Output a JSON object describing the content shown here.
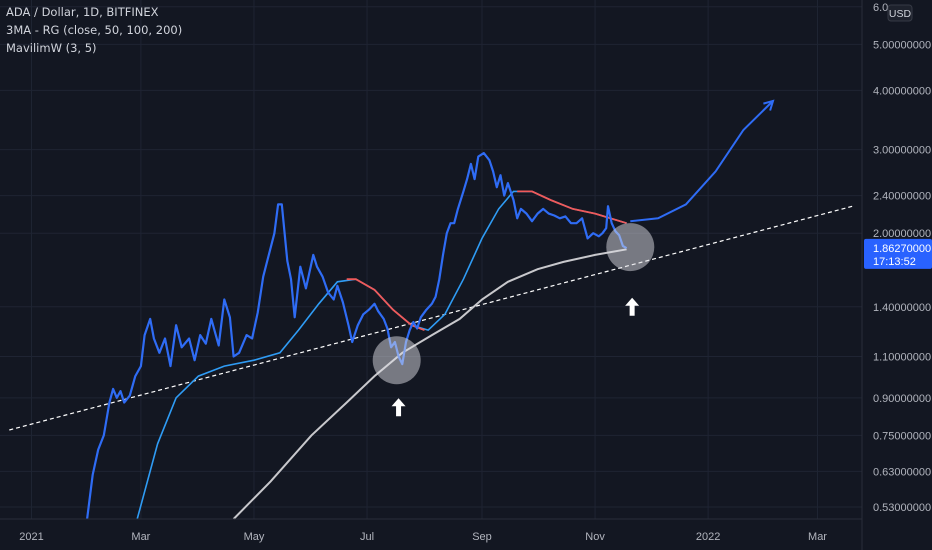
{
  "header": {
    "symbol": "ADA / Dollar, 1D, BITFINEX",
    "indicator_1": "3MA - RG (close, 50, 100, 200)",
    "indicator_2": "MavilimW (3, 5)",
    "currency": "USD"
  },
  "colors": {
    "background": "#131722",
    "grid": "#1f2433",
    "price": "#2f6cf5",
    "ma50": "#2f9cf5",
    "ma100_down": "#f05a5a",
    "ma200": "#c8c8cc",
    "trendline": "#ffffff",
    "price_label_bg": "#2962ff",
    "axis_text": "#b2b5be"
  },
  "price_label": {
    "value": "1.86270000",
    "countdown": "17:13:52"
  },
  "chart_data": {
    "type": "line",
    "title": "ADA / Dollar, 1D, BITFINEX",
    "y_scale": "log",
    "ylim": [
      0.5,
      6.2
    ],
    "xlim": [
      "2020-12-15",
      "2022-03-25"
    ],
    "x_ticks": [
      {
        "date": "2021-01-01",
        "label": "2021"
      },
      {
        "date": "2021-03-01",
        "label": "Mar"
      },
      {
        "date": "2021-05-01",
        "label": "May"
      },
      {
        "date": "2021-07-01",
        "label": "Jul"
      },
      {
        "date": "2021-09-01",
        "label": "Sep"
      },
      {
        "date": "2021-11-01",
        "label": "Nov"
      },
      {
        "date": "2022-01-01",
        "label": "2022"
      },
      {
        "date": "2022-03-01",
        "label": "Mar"
      }
    ],
    "y_ticks": [
      {
        "value": 6.0,
        "label": "6.0"
      },
      {
        "value": 5.0,
        "label": "5.00000000"
      },
      {
        "value": 4.0,
        "label": "4.00000000"
      },
      {
        "value": 3.0,
        "label": "3.00000000"
      },
      {
        "value": 2.4,
        "label": "2.40000000"
      },
      {
        "value": 2.0,
        "label": "2.00000000"
      },
      {
        "value": 1.4,
        "label": "1.40000000"
      },
      {
        "value": 1.1,
        "label": "1.10000000"
      },
      {
        "value": 0.9,
        "label": "0.90000000"
      },
      {
        "value": 0.75,
        "label": "0.75000000"
      },
      {
        "value": 0.63,
        "label": "0.63000000"
      },
      {
        "value": 0.53,
        "label": "0.53000000"
      }
    ],
    "series": [
      {
        "key": "price",
        "values": [
          [
            "2021-01-31",
            0.5
          ],
          [
            "2021-02-03",
            0.62
          ],
          [
            "2021-02-06",
            0.7
          ],
          [
            "2021-02-09",
            0.75
          ],
          [
            "2021-02-12",
            0.88
          ],
          [
            "2021-02-14",
            0.94
          ],
          [
            "2021-02-16",
            0.9
          ],
          [
            "2021-02-18",
            0.93
          ],
          [
            "2021-02-20",
            0.88
          ],
          [
            "2021-02-23",
            0.91
          ],
          [
            "2021-02-26",
            1.0
          ],
          [
            "2021-03-01",
            1.05
          ],
          [
            "2021-03-03",
            1.22
          ],
          [
            "2021-03-06",
            1.32
          ],
          [
            "2021-03-08",
            1.2
          ],
          [
            "2021-03-11",
            1.12
          ],
          [
            "2021-03-14",
            1.2
          ],
          [
            "2021-03-17",
            1.05
          ],
          [
            "2021-03-20",
            1.28
          ],
          [
            "2021-03-23",
            1.15
          ],
          [
            "2021-03-27",
            1.2
          ],
          [
            "2021-03-30",
            1.08
          ],
          [
            "2021-04-02",
            1.22
          ],
          [
            "2021-04-05",
            1.17
          ],
          [
            "2021-04-08",
            1.32
          ],
          [
            "2021-04-12",
            1.16
          ],
          [
            "2021-04-15",
            1.45
          ],
          [
            "2021-04-18",
            1.33
          ],
          [
            "2021-04-20",
            1.1
          ],
          [
            "2021-04-23",
            1.12
          ],
          [
            "2021-04-27",
            1.22
          ],
          [
            "2021-04-30",
            1.2
          ],
          [
            "2021-05-03",
            1.36
          ],
          [
            "2021-05-06",
            1.62
          ],
          [
            "2021-05-09",
            1.8
          ],
          [
            "2021-05-12",
            2.0
          ],
          [
            "2021-05-14",
            2.3
          ],
          [
            "2021-05-16",
            2.3
          ],
          [
            "2021-05-19",
            1.75
          ],
          [
            "2021-05-21",
            1.6
          ],
          [
            "2021-05-23",
            1.33
          ],
          [
            "2021-05-26",
            1.7
          ],
          [
            "2021-05-29",
            1.53
          ],
          [
            "2021-06-02",
            1.8
          ],
          [
            "2021-06-04",
            1.7
          ],
          [
            "2021-06-07",
            1.62
          ],
          [
            "2021-06-10",
            1.5
          ],
          [
            "2021-06-13",
            1.45
          ],
          [
            "2021-06-15",
            1.55
          ],
          [
            "2021-06-18",
            1.43
          ],
          [
            "2021-06-21",
            1.28
          ],
          [
            "2021-06-23",
            1.18
          ],
          [
            "2021-06-26",
            1.28
          ],
          [
            "2021-06-29",
            1.35
          ],
          [
            "2021-07-02",
            1.38
          ],
          [
            "2021-07-05",
            1.42
          ],
          [
            "2021-07-07",
            1.37
          ],
          [
            "2021-07-10",
            1.32
          ],
          [
            "2021-07-12",
            1.26
          ],
          [
            "2021-07-14",
            1.15
          ],
          [
            "2021-07-16",
            1.18
          ],
          [
            "2021-07-18",
            1.1
          ],
          [
            "2021-07-20",
            1.06
          ],
          [
            "2021-07-22",
            1.18
          ],
          [
            "2021-07-24",
            1.25
          ],
          [
            "2021-07-26",
            1.3
          ],
          [
            "2021-07-28",
            1.26
          ],
          [
            "2021-07-30",
            1.33
          ],
          [
            "2021-08-02",
            1.38
          ],
          [
            "2021-08-05",
            1.42
          ],
          [
            "2021-08-07",
            1.47
          ],
          [
            "2021-08-09",
            1.6
          ],
          [
            "2021-08-11",
            1.8
          ],
          [
            "2021-08-13",
            2.0
          ],
          [
            "2021-08-15",
            2.1
          ],
          [
            "2021-08-17",
            2.1
          ],
          [
            "2021-08-19",
            2.25
          ],
          [
            "2021-08-22",
            2.45
          ],
          [
            "2021-08-24",
            2.6
          ],
          [
            "2021-08-26",
            2.8
          ],
          [
            "2021-08-28",
            2.6
          ],
          [
            "2021-08-30",
            2.9
          ],
          [
            "2021-09-02",
            2.95
          ],
          [
            "2021-09-05",
            2.85
          ],
          [
            "2021-09-07",
            2.7
          ],
          [
            "2021-09-09",
            2.5
          ],
          [
            "2021-09-11",
            2.65
          ],
          [
            "2021-09-13",
            2.4
          ],
          [
            "2021-09-15",
            2.55
          ],
          [
            "2021-09-18",
            2.35
          ],
          [
            "2021-09-20",
            2.15
          ],
          [
            "2021-09-22",
            2.25
          ],
          [
            "2021-09-25",
            2.2
          ],
          [
            "2021-09-28",
            2.12
          ],
          [
            "2021-10-01",
            2.2
          ],
          [
            "2021-10-04",
            2.25
          ],
          [
            "2021-10-07",
            2.2
          ],
          [
            "2021-10-10",
            2.18
          ],
          [
            "2021-10-13",
            2.15
          ],
          [
            "2021-10-16",
            2.17
          ],
          [
            "2021-10-19",
            2.1
          ],
          [
            "2021-10-22",
            2.1
          ],
          [
            "2021-10-25",
            2.15
          ],
          [
            "2021-10-28",
            1.95
          ],
          [
            "2021-10-31",
            2.0
          ],
          [
            "2021-11-03",
            1.97
          ],
          [
            "2021-11-05",
            2.0
          ],
          [
            "2021-11-07",
            2.05
          ],
          [
            "2021-11-08",
            2.28
          ],
          [
            "2021-11-10",
            2.1
          ],
          [
            "2021-11-12",
            2.02
          ],
          [
            "2021-11-14",
            1.98
          ],
          [
            "2021-11-16",
            1.88
          ],
          [
            "2021-11-18",
            1.86
          ]
        ]
      },
      {
        "key": "ma50",
        "values": [
          [
            "2021-02-27",
            0.5
          ],
          [
            "2021-03-10",
            0.72
          ],
          [
            "2021-03-20",
            0.9
          ],
          [
            "2021-04-01",
            1.0
          ],
          [
            "2021-04-15",
            1.05
          ],
          [
            "2021-05-01",
            1.08
          ],
          [
            "2021-05-15",
            1.12
          ],
          [
            "2021-05-25",
            1.25
          ],
          [
            "2021-06-05",
            1.42
          ],
          [
            "2021-06-15",
            1.58
          ],
          [
            "2021-06-25",
            1.6
          ],
          [
            "2021-07-05",
            1.52
          ],
          [
            "2021-07-15",
            1.38
          ],
          [
            "2021-07-25",
            1.28
          ],
          [
            "2021-08-03",
            1.25
          ],
          [
            "2021-08-12",
            1.35
          ],
          [
            "2021-08-22",
            1.6
          ],
          [
            "2021-09-01",
            1.95
          ],
          [
            "2021-09-10",
            2.25
          ],
          [
            "2021-09-18",
            2.45
          ],
          [
            "2021-09-28",
            2.45
          ],
          [
            "2021-10-08",
            2.35
          ],
          [
            "2021-10-20",
            2.25
          ],
          [
            "2021-11-01",
            2.2
          ],
          [
            "2021-11-18",
            2.1
          ]
        ]
      },
      {
        "key": "ma50_down",
        "values": [
          [
            "2021-06-20",
            1.6
          ],
          [
            "2021-06-25",
            1.6
          ],
          [
            "2021-07-05",
            1.52
          ],
          [
            "2021-07-15",
            1.38
          ],
          [
            "2021-07-25",
            1.28
          ],
          [
            "2021-08-01",
            1.25
          ]
        ]
      },
      {
        "key": "ma50_down_2",
        "values": [
          [
            "2021-09-20",
            2.45
          ],
          [
            "2021-09-28",
            2.45
          ],
          [
            "2021-10-08",
            2.35
          ],
          [
            "2021-10-20",
            2.25
          ],
          [
            "2021-11-01",
            2.2
          ],
          [
            "2021-11-18",
            2.1
          ]
        ]
      },
      {
        "key": "ma200",
        "values": [
          [
            "2021-04-20",
            0.5
          ],
          [
            "2021-05-10",
            0.6
          ],
          [
            "2021-06-01",
            0.75
          ],
          [
            "2021-06-20",
            0.88
          ],
          [
            "2021-07-05",
            1.0
          ],
          [
            "2021-07-20",
            1.12
          ],
          [
            "2021-08-05",
            1.22
          ],
          [
            "2021-08-20",
            1.32
          ],
          [
            "2021-09-01",
            1.45
          ],
          [
            "2021-09-15",
            1.58
          ],
          [
            "2021-10-01",
            1.68
          ],
          [
            "2021-10-15",
            1.74
          ],
          [
            "2021-11-01",
            1.8
          ],
          [
            "2021-11-18",
            1.85
          ]
        ]
      },
      {
        "key": "projection",
        "values": [
          [
            "2021-11-20",
            2.12
          ],
          [
            "2021-12-05",
            2.15
          ],
          [
            "2021-12-20",
            2.3
          ],
          [
            "2022-01-05",
            2.7
          ],
          [
            "2022-01-20",
            3.3
          ],
          [
            "2022-02-05",
            3.8
          ]
        ]
      },
      {
        "key": "trendline",
        "values": [
          [
            "2020-12-20",
            0.77
          ],
          [
            "2022-03-20",
            2.28
          ]
        ]
      }
    ],
    "annotations": [
      {
        "type": "circle",
        "date": "2021-07-17",
        "value": 1.08
      },
      {
        "type": "circle",
        "date": "2021-11-20",
        "value": 1.87
      },
      {
        "type": "up-arrow",
        "date": "2021-07-18",
        "value": 0.86
      },
      {
        "type": "up-arrow",
        "date": "2021-11-21",
        "value": 1.4
      }
    ]
  }
}
